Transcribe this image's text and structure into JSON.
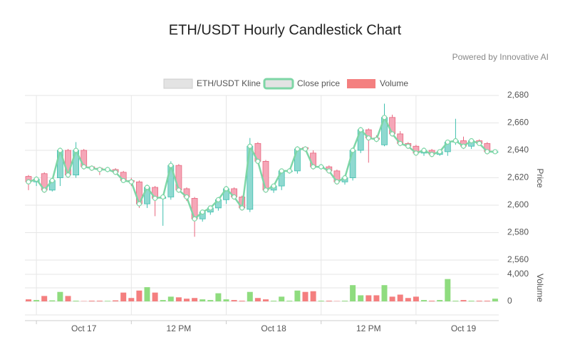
{
  "chart_data": {
    "type": "candlestick",
    "title": "ETH/USDT Hourly Candlestick Chart",
    "subtitle": "Powered by Innovative AI",
    "y_label": "Price",
    "y2_label": "Volume",
    "categories": [
      null,
      null,
      null,
      null,
      null,
      null,
      null,
      "Oct 17",
      null,
      null,
      null,
      null,
      null,
      null,
      null,
      null,
      null,
      null,
      null,
      "12 PM",
      null,
      null,
      null,
      null,
      null,
      null,
      null,
      null,
      null,
      null,
      null,
      "Oct 18",
      null,
      null,
      null,
      null,
      null,
      null,
      null,
      null,
      null,
      null,
      null,
      "12 PM",
      null,
      null,
      null,
      null,
      null,
      null,
      null,
      null,
      null,
      null,
      null,
      "Oct 19",
      null,
      null,
      null,
      null
    ],
    "series": [
      {
        "name": "ETH/USDT Kline",
        "color": "#e3e3e3",
        "up_color": "#8fd9d0",
        "down_color": "#f5a7b8",
        "open": [
          2621,
          2617,
          2623,
          2611,
          2620,
          2640,
          2622,
          2640,
          2628,
          2627,
          2626,
          2626,
          2624,
          2618,
          2617,
          2601,
          2613,
          2605,
          2606,
          2629,
          2612,
          2605,
          2590,
          2595,
          2598,
          2604,
          2612,
          2606,
          2597,
          2645,
          2632,
          2611,
          2614,
          2625,
          2625,
          2642,
          2638,
          2628,
          2628,
          2625,
          2617,
          2620,
          2640,
          2655,
          2649,
          2644,
          2664,
          2652,
          2645,
          2643,
          2638,
          2640,
          2637,
          2639,
          2646,
          2647,
          2643,
          2647,
          2645,
          2639
        ],
        "high": [
          2622,
          2621,
          2624,
          2619,
          2641,
          2641,
          2646,
          2641,
          2629,
          2628,
          2628,
          2627,
          2625,
          2620,
          2618,
          2615,
          2614,
          2607,
          2632,
          2630,
          2613,
          2606,
          2596,
          2599,
          2606,
          2614,
          2613,
          2607,
          2649,
          2646,
          2633,
          2615,
          2626,
          2627,
          2643,
          2643,
          2640,
          2630,
          2629,
          2626,
          2622,
          2642,
          2657,
          2656,
          2651,
          2674,
          2666,
          2654,
          2646,
          2644,
          2642,
          2641,
          2640,
          2647,
          2663,
          2650,
          2648,
          2648,
          2646,
          2640
        ],
        "low": [
          2611,
          2614,
          2609,
          2610,
          2614,
          2620,
          2620,
          2626,
          2625,
          2622,
          2624,
          2622,
          2617,
          2614,
          2598,
          2598,
          2592,
          2585,
          2604,
          2609,
          2603,
          2577,
          2588,
          2593,
          2596,
          2601,
          2604,
          2596,
          2595,
          2630,
          2609,
          2609,
          2611,
          2623,
          2623,
          2639,
          2626,
          2626,
          2623,
          2615,
          2615,
          2618,
          2638,
          2631,
          2646,
          2643,
          2650,
          2643,
          2641,
          2636,
          2636,
          2635,
          2636,
          2636,
          2644,
          2641,
          2641,
          2644,
          2637,
          2638
        ],
        "close": [
          2617,
          2619,
          2611,
          2618,
          2640,
          2622,
          2640,
          2628,
          2627,
          2626,
          2626,
          2624,
          2618,
          2617,
          2601,
          2613,
          2605,
          2606,
          2629,
          2611,
          2606,
          2590,
          2595,
          2598,
          2604,
          2612,
          2606,
          2598,
          2643,
          2632,
          2611,
          2614,
          2625,
          2625,
          2641,
          2641,
          2628,
          2628,
          2625,
          2617,
          2620,
          2640,
          2655,
          2649,
          2648,
          2664,
          2652,
          2645,
          2643,
          2638,
          2640,
          2637,
          2639,
          2646,
          2647,
          2643,
          2647,
          2645,
          2639,
          2639
        ]
      },
      {
        "name": "Close price",
        "color": "#7ed6a6",
        "values": [
          2617,
          2619,
          2611,
          2618,
          2640,
          2622,
          2640,
          2628,
          2627,
          2626,
          2626,
          2624,
          2618,
          2617,
          2601,
          2613,
          2605,
          2606,
          2629,
          2611,
          2606,
          2590,
          2595,
          2598,
          2604,
          2612,
          2606,
          2598,
          2643,
          2632,
          2611,
          2614,
          2625,
          2625,
          2641,
          2641,
          2628,
          2628,
          2625,
          2617,
          2620,
          2640,
          2655,
          2649,
          2648,
          2664,
          2652,
          2645,
          2643,
          2638,
          2640,
          2637,
          2639,
          2646,
          2647,
          2643,
          2647,
          2645,
          2639,
          2639
        ]
      },
      {
        "name": "Volume",
        "color": "#f47f7f",
        "up_color": "#8fdc7f",
        "down_color": "#f47f7f",
        "axis": "y2",
        "values": [
          300,
          200,
          800,
          150,
          1400,
          800,
          100,
          50,
          100,
          100,
          80,
          150,
          1300,
          500,
          1600,
          2100,
          1300,
          200,
          700,
          600,
          400,
          500,
          300,
          200,
          1200,
          300,
          200,
          100,
          1400,
          500,
          300,
          100,
          700,
          100,
          1600,
          1400,
          1500,
          100,
          100,
          50,
          100,
          2400,
          900,
          900,
          900,
          2400,
          700,
          1000,
          500,
          700,
          200,
          100,
          200,
          3300,
          100,
          200,
          100,
          100,
          100,
          400
        ]
      }
    ],
    "ylim": [
      2560,
      2680
    ],
    "yticks": [
      {
        "value": 2560,
        "label": "2,560"
      },
      {
        "value": 2580,
        "label": "2,580"
      },
      {
        "value": 2600,
        "label": "2,600"
      },
      {
        "value": 2620,
        "label": "2,620"
      },
      {
        "value": 2640,
        "label": "2,640"
      },
      {
        "value": 2660,
        "label": "2,660"
      },
      {
        "value": 2680,
        "label": "2,680"
      }
    ],
    "y2lim": [
      -2000,
      4000
    ],
    "y2ticks": [
      0,
      {
        "value": 4000,
        "label": "4,000"
      }
    ],
    "grid": true
  }
}
